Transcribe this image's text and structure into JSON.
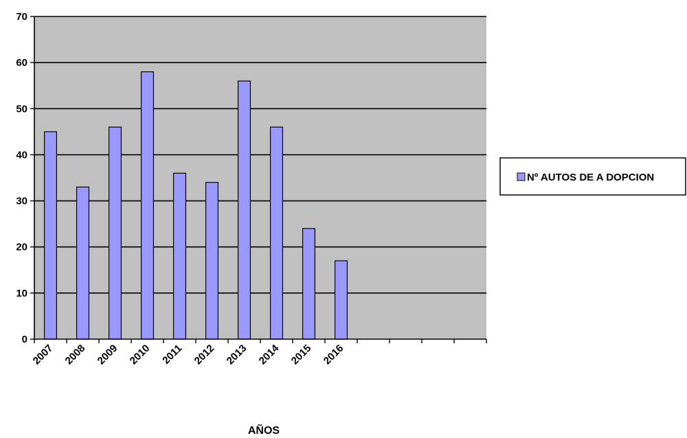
{
  "chart_data": {
    "type": "bar",
    "categories": [
      "2007",
      "2008",
      "2009",
      "2010",
      "2011",
      "2012",
      "2013",
      "2014",
      "2015",
      "2016"
    ],
    "empty_slots": 4,
    "series": [
      {
        "name": "Nº AUTOS DE A DOPCION",
        "values": [
          45,
          33,
          46,
          58,
          36,
          34,
          56,
          46,
          24,
          17
        ],
        "color": "#9999ff"
      }
    ],
    "xlabel": "AÑOS",
    "ylabel": "",
    "ylim": [
      0,
      70
    ],
    "yticks": [
      0,
      10,
      20,
      30,
      40,
      50,
      60,
      70
    ],
    "grid": true,
    "legend_position": "right",
    "plot_background": "#c0c0c0",
    "gridline_color": "#000000"
  }
}
